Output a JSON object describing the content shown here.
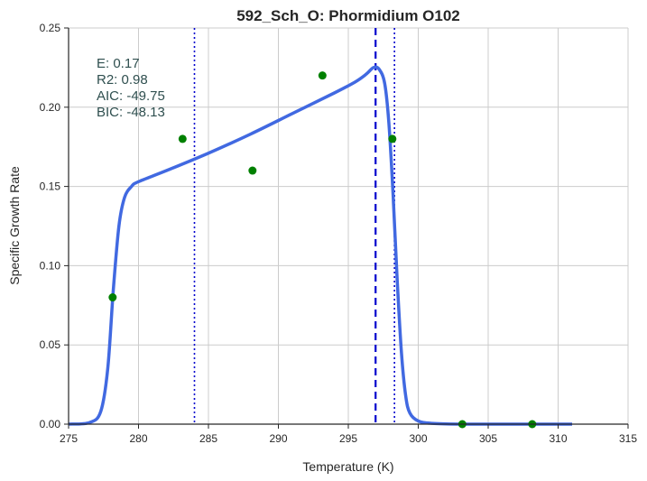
{
  "chart_data": {
    "type": "line",
    "title": "592_Sch_O: Phormidium O102",
    "xlabel": "Temperature (K)",
    "ylabel": "Specific Growth Rate",
    "xlim": [
      275,
      315
    ],
    "ylim": [
      0,
      0.25
    ],
    "grid": true,
    "x_ticks": [
      275,
      280,
      285,
      290,
      295,
      300,
      305,
      310,
      315
    ],
    "x_tick_labels": [
      "275",
      "280",
      "285",
      "290",
      "295",
      "300",
      "305",
      "310",
      "315"
    ],
    "y_ticks": [
      0,
      0.05,
      0.1,
      0.15,
      0.2,
      0.25
    ],
    "y_tick_labels": [
      "0.00",
      "0.05",
      "0.10",
      "0.15",
      "0.20",
      "0.25"
    ],
    "series": [
      {
        "kind": "fit-curve",
        "color": "#4169e1",
        "x": [
          275.0,
          276.5,
          277.3,
          277.8,
          278.2,
          278.6,
          279.0,
          279.5,
          280.0,
          282.0,
          285.0,
          288.0,
          291.0,
          294.0,
          295.5,
          296.3,
          296.8,
          297.2,
          297.6,
          297.9,
          298.2,
          298.5,
          298.8,
          299.1,
          299.4,
          300.0,
          301.0,
          303.0,
          306.0,
          309.0,
          311.0
        ],
        "y": [
          0.0,
          0.001,
          0.008,
          0.035,
          0.085,
          0.125,
          0.143,
          0.15,
          0.153,
          0.16,
          0.171,
          0.183,
          0.196,
          0.209,
          0.216,
          0.221,
          0.225,
          0.224,
          0.215,
          0.19,
          0.145,
          0.09,
          0.045,
          0.018,
          0.007,
          0.002,
          0.0005,
          0.0,
          0.0,
          0.0,
          0.0
        ]
      },
      {
        "kind": "observed-points",
        "color": "#008000",
        "x": [
          278.15,
          283.15,
          288.15,
          293.15,
          298.15,
          303.15,
          308.15
        ],
        "y": [
          0.08,
          0.18,
          0.16,
          0.22,
          0.18,
          0.0,
          0.0
        ]
      }
    ],
    "vlines": [
      {
        "x": 284.0,
        "style": "dotted",
        "color": "#0000cd"
      },
      {
        "x": 296.95,
        "style": "dashed",
        "color": "#0000cd"
      },
      {
        "x": 298.3,
        "style": "dotted",
        "color": "#0000cd"
      }
    ],
    "annotations": [
      "E:  0.17",
      "R2:  0.98",
      "AIC: -49.75",
      "BIC: -48.13"
    ]
  }
}
